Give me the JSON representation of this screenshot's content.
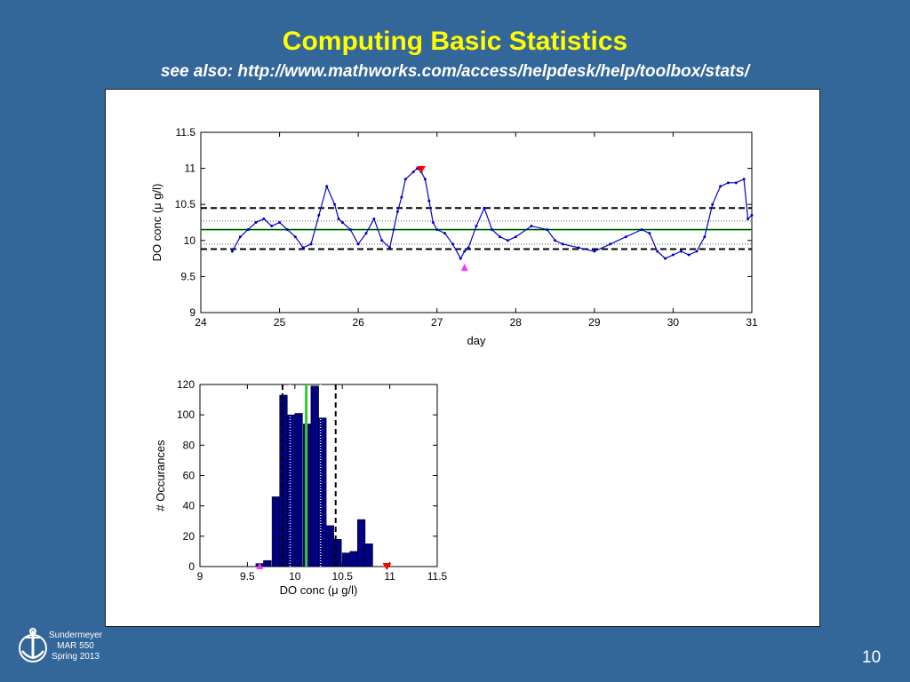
{
  "slide": {
    "title": "Computing Basic Statistics",
    "subtitle": "see also: http://www.mathworks.com/access/helpdesk/help/toolbox/stats/",
    "footer_lines": [
      "Sundermeyer",
      "MAR 550",
      "Spring 2013"
    ],
    "page_number": "10",
    "colors": {
      "background": "#336699",
      "title": "#ffff00",
      "series": "#0000cc",
      "bars": "#000080",
      "mean": "#33cc33",
      "max_marker": "#ff0000",
      "min_marker": "#ff33ff"
    }
  },
  "chart_data": [
    {
      "type": "line",
      "xlabel": "day",
      "ylabel": "DO conc (μ g/l)",
      "xlim": [
        24,
        31
      ],
      "ylim": [
        9,
        11.5
      ],
      "xticks": [
        "24",
        "25",
        "26",
        "27",
        "28",
        "29",
        "30",
        "31"
      ],
      "yticks": [
        "9",
        "9.5",
        "10",
        "10.5",
        "11",
        "11.5"
      ],
      "x": [
        24.4,
        24.5,
        24.6,
        24.7,
        24.8,
        24.9,
        25.0,
        25.1,
        25.2,
        25.3,
        25.4,
        25.5,
        25.6,
        25.7,
        25.75,
        25.8,
        25.9,
        26.0,
        26.1,
        26.2,
        26.3,
        26.4,
        26.45,
        26.5,
        26.55,
        26.6,
        26.7,
        26.75,
        26.8,
        26.85,
        26.9,
        26.95,
        27.0,
        27.1,
        27.2,
        27.3,
        27.35,
        27.4,
        27.5,
        27.6,
        27.7,
        27.8,
        27.9,
        28.0,
        28.2,
        28.4,
        28.5,
        28.6,
        28.8,
        29.0,
        29.2,
        29.4,
        29.6,
        29.7,
        29.8,
        29.9,
        30.0,
        30.1,
        30.2,
        30.3,
        30.4,
        30.5,
        30.6,
        30.7,
        30.8,
        30.9,
        30.95,
        31.0
      ],
      "y": [
        9.85,
        10.05,
        10.15,
        10.25,
        10.3,
        10.2,
        10.25,
        10.15,
        10.05,
        9.9,
        9.95,
        10.35,
        10.75,
        10.5,
        10.3,
        10.25,
        10.15,
        9.95,
        10.1,
        10.3,
        10.0,
        9.9,
        10.15,
        10.4,
        10.6,
        10.85,
        10.95,
        11.0,
        10.95,
        10.85,
        10.55,
        10.25,
        10.15,
        10.1,
        9.95,
        9.75,
        9.85,
        9.9,
        10.2,
        10.45,
        10.15,
        10.05,
        10.0,
        10.05,
        10.2,
        10.15,
        10.0,
        9.95,
        9.9,
        9.85,
        9.95,
        10.05,
        10.15,
        10.1,
        9.85,
        9.75,
        9.8,
        9.85,
        9.8,
        9.85,
        10.05,
        10.5,
        10.75,
        10.8,
        10.8,
        10.85,
        10.3,
        10.35
      ],
      "mean": 10.15,
      "std_lines": [
        9.88,
        10.45
      ],
      "inner_dotted": [
        9.95,
        10.27
      ],
      "max_marker": [
        26.8,
        10.97
      ],
      "min_marker": [
        27.35,
        9.63
      ]
    },
    {
      "type": "bar",
      "xlabel": "DO conc (μ g/l)",
      "ylabel": "# Occurances",
      "xlim": [
        9,
        11.5
      ],
      "ylim": [
        0,
        120
      ],
      "xticks": [
        "9",
        "9.5",
        "10",
        "10.5",
        "11",
        "11.5"
      ],
      "yticks": [
        "0",
        "20",
        "40",
        "60",
        "80",
        "100",
        "120"
      ],
      "bin_width": 0.0816,
      "bin_centers": [
        9.63,
        9.71,
        9.8,
        9.88,
        9.96,
        10.04,
        10.13,
        10.21,
        10.29,
        10.37,
        10.45,
        10.54,
        10.62,
        10.7,
        10.78,
        10.86,
        10.95
      ],
      "values": [
        2,
        4,
        46,
        113,
        100,
        101,
        94,
        119,
        98,
        27,
        18,
        9,
        10,
        31,
        15,
        0,
        0
      ],
      "mean": 10.12,
      "std_lines": [
        9.87,
        10.43
      ],
      "inner_dotted": [
        9.95,
        10.27
      ],
      "max_marker": 10.97,
      "min_marker": 9.63
    }
  ]
}
